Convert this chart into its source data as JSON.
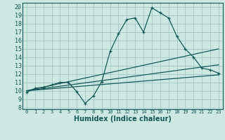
{
  "xlabel": "Humidex (Indice chaleur)",
  "bg_color": "#cce8e0",
  "grid_color": "#a8ccc8",
  "line_color": "#1a5858",
  "xlim": [
    -0.5,
    23.5
  ],
  "ylim": [
    7.8,
    20.5
  ],
  "xticks": [
    0,
    1,
    2,
    3,
    4,
    5,
    6,
    7,
    8,
    9,
    10,
    11,
    12,
    13,
    14,
    15,
    16,
    17,
    18,
    19,
    20,
    21,
    22,
    23
  ],
  "yticks": [
    8,
    9,
    10,
    11,
    12,
    13,
    14,
    15,
    16,
    17,
    18,
    19,
    20
  ],
  "curve1_x": [
    0,
    1,
    2,
    3,
    4,
    5,
    6,
    7,
    8,
    9,
    10,
    11,
    12,
    13,
    14,
    15,
    16,
    17,
    18,
    19,
    20,
    21,
    22,
    23
  ],
  "curve1_y": [
    9.8,
    10.3,
    10.4,
    10.7,
    11.0,
    11.0,
    9.9,
    8.5,
    9.4,
    11.1,
    14.7,
    16.8,
    18.5,
    18.7,
    17.0,
    19.9,
    19.3,
    18.7,
    16.5,
    15.0,
    14.0,
    12.7,
    12.5,
    12.1
  ],
  "curve2_x": [
    0,
    23
  ],
  "curve2_y": [
    10.0,
    11.9
  ],
  "curve3_x": [
    0,
    23
  ],
  "curve3_y": [
    10.0,
    13.1
  ],
  "curve4_x": [
    0,
    23
  ],
  "curve4_y": [
    10.0,
    15.0
  ]
}
